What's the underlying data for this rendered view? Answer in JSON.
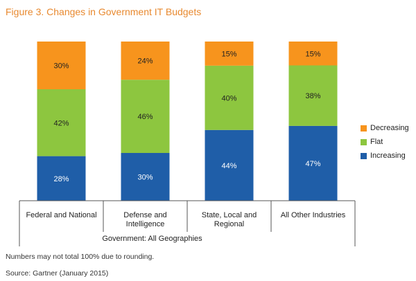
{
  "title": "Figure 3. Changes in Government IT Budgets",
  "footnote": "Numbers may not total 100% due to rounding.",
  "source": "Source: Gartner (January 2015)",
  "colors": {
    "Decreasing": "#f7941d",
    "Flat": "#8dc63f",
    "Increasing": "#1f5ea8",
    "title": "#e8892f"
  },
  "chart_data": {
    "type": "bar",
    "stacked": true,
    "title": "Figure 3. Changes in Government IT Budgets",
    "categories": [
      "Federal and National",
      "Defense and Intelligence",
      "State, Local and Regional",
      "All Other Industries"
    ],
    "category_lines": [
      [
        "Federal and National"
      ],
      [
        "Defense and",
        "Intelligence"
      ],
      [
        "State, Local and",
        "Regional"
      ],
      [
        "All Other Industries"
      ]
    ],
    "group_label": "Government: All Geographies",
    "series": [
      {
        "name": "Increasing",
        "values": [
          28,
          30,
          44,
          47
        ],
        "labels": [
          "28%",
          "30%",
          "44%",
          "47%"
        ]
      },
      {
        "name": "Flat",
        "values": [
          42,
          46,
          40,
          38
        ],
        "labels": [
          "42%",
          "46%",
          "40%",
          "38%"
        ]
      },
      {
        "name": "Decreasing",
        "values": [
          30,
          24,
          15,
          15
        ],
        "labels": [
          "30%",
          "24%",
          "15%",
          "15%"
        ]
      }
    ],
    "legend": [
      "Decreasing",
      "Flat",
      "Increasing"
    ],
    "legend_position": "right",
    "ylim": [
      0,
      100
    ],
    "grid": false
  }
}
